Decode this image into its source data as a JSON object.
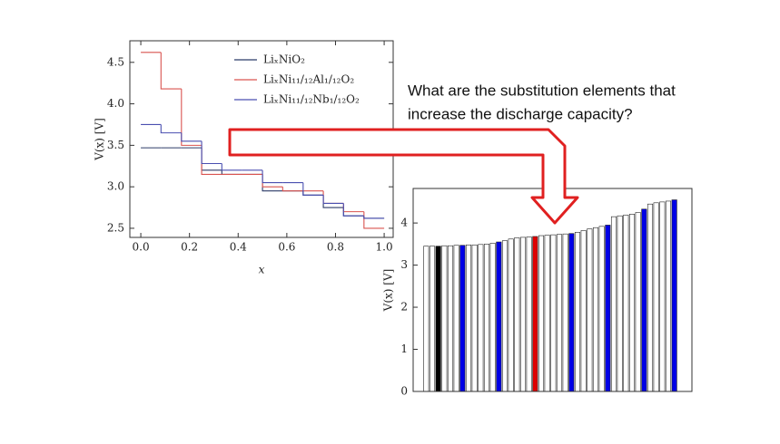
{
  "chart_data": [
    {
      "type": "step",
      "step": "post",
      "x": [
        0,
        0.083,
        0.167,
        0.25,
        0.333,
        0.417,
        0.5,
        0.583,
        0.667,
        0.75,
        0.833,
        0.917,
        1.0
      ],
      "series": [
        {
          "name": "LiₓNiO₂",
          "color": "#2b3a67",
          "values": [
            3.47,
            3.47,
            3.47,
            3.2,
            3.15,
            3.15,
            2.95,
            2.95,
            2.9,
            2.75,
            2.65,
            2.62,
            2.62
          ]
        },
        {
          "name": "LiₓNi₁₁/₁₂Al₁/₁₂O₂",
          "color": "#d9534f",
          "values": [
            4.62,
            4.18,
            3.5,
            3.15,
            3.15,
            3.15,
            3.0,
            2.95,
            2.95,
            2.8,
            2.7,
            2.5,
            2.5
          ]
        },
        {
          "name": "LiₓNi₁₁/₁₂Nb₁/₁₂O₂",
          "color": "#4a4fb0",
          "values": [
            3.75,
            3.65,
            3.55,
            3.28,
            3.2,
            3.2,
            3.05,
            3.05,
            2.9,
            2.8,
            2.65,
            2.62,
            2.62
          ]
        }
      ],
      "x_label": "x",
      "y_label": "V(x) [V]",
      "xlim": [
        -0.045,
        1.037
      ],
      "ylim": [
        2.39,
        4.76
      ],
      "xticks": [
        {
          "value": 0,
          "label": "0.0"
        },
        0.2,
        0.4,
        0.6,
        0.8,
        {
          "value": 1,
          "label": "1.0"
        }
      ],
      "yticks": [
        2.5,
        {
          "value": 3,
          "label": "3.0"
        },
        3.5,
        {
          "value": 4,
          "label": "4.0"
        },
        4.5
      ],
      "legend": "upper right"
    },
    {
      "type": "bar",
      "categories": [
        null,
        null,
        null,
        null,
        null,
        null,
        null,
        null,
        null,
        null,
        null,
        null,
        null,
        null,
        null,
        null,
        null,
        null,
        null,
        null,
        null,
        null,
        null,
        null,
        null,
        null,
        null,
        null,
        null,
        null,
        null,
        null,
        null,
        null,
        null,
        null,
        null,
        null,
        null,
        null,
        null,
        null
      ],
      "values": [
        3.45,
        3.45,
        3.45,
        3.46,
        3.46,
        3.47,
        3.47,
        3.48,
        3.48,
        3.49,
        3.5,
        3.52,
        3.55,
        3.58,
        3.62,
        3.65,
        3.66,
        3.67,
        3.68,
        3.7,
        3.71,
        3.72,
        3.73,
        3.74,
        3.75,
        3.78,
        3.82,
        3.86,
        3.89,
        3.92,
        3.95,
        4.15,
        4.17,
        4.19,
        4.21,
        4.25,
        4.33,
        4.45,
        4.48,
        4.5,
        4.52,
        4.55
      ],
      "colors": [
        "#ffffff",
        "#ffffff",
        "#000000",
        "#ffffff",
        "#ffffff",
        "#ffffff",
        "#0000e6",
        "#ffffff",
        "#ffffff",
        "#ffffff",
        "#ffffff",
        "#ffffff",
        "#0000e6",
        "#ffffff",
        "#ffffff",
        "#ffffff",
        "#ffffff",
        "#ffffff",
        "#e00000",
        "#ffffff",
        "#ffffff",
        "#ffffff",
        "#ffffff",
        "#ffffff",
        "#0000e6",
        "#ffffff",
        "#ffffff",
        "#ffffff",
        "#ffffff",
        "#ffffff",
        "#0000e6",
        "#ffffff",
        "#ffffff",
        "#ffffff",
        "#ffffff",
        "#ffffff",
        "#0000e6",
        "#ffffff",
        "#ffffff",
        "#ffffff",
        "#ffffff",
        "#0000e6"
      ],
      "y_label": "V(x) [V]",
      "ylim": [
        0,
        4.82
      ],
      "yticks": [
        0,
        1,
        2,
        3,
        4
      ]
    }
  ],
  "annotation": [
    "What are the substitution elements that",
    "increase the discharge capacity?"
  ]
}
